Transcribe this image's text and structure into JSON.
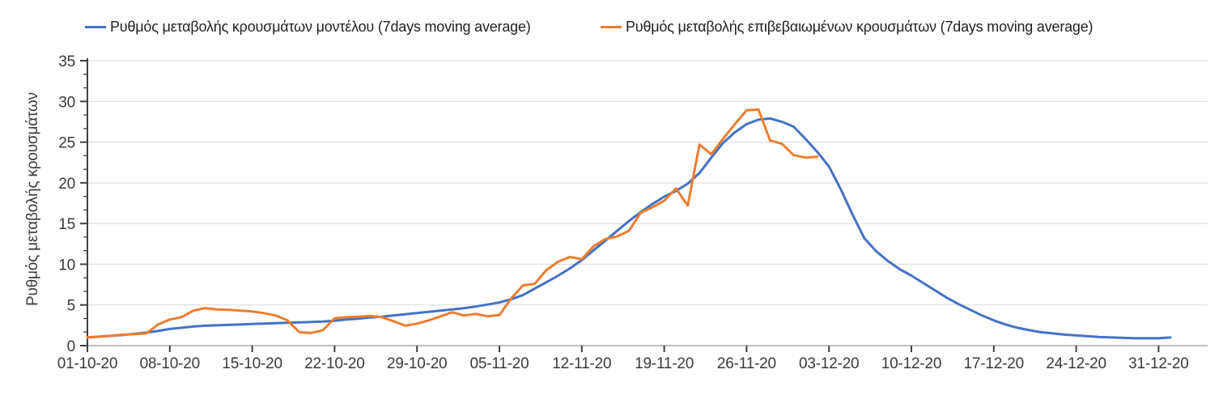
{
  "legend": {
    "items": [
      {
        "label": "Ρυθμός μεταβολής κρουσμάτων μοντέλου (7days moving average)",
        "color": "#4472C4"
      },
      {
        "label": "Ρυθμός μεταβολής επιβεβαιωμένων κρουσμάτων (7days moving average)",
        "color": "#ED7D31"
      }
    ]
  },
  "chart_data": {
    "type": "line",
    "title": "",
    "xlabel": "",
    "ylabel": "Ρυθμός μεταβολής κρουσμάτων",
    "ylim": [
      0,
      35
    ],
    "y_ticks": [
      0,
      5,
      10,
      15,
      20,
      25,
      30,
      35
    ],
    "grid": "horizontal",
    "legend_position": "top",
    "x_start_date": "01-10-20",
    "x_frequency": "daily",
    "x_ticks": [
      {
        "day": 0,
        "label": "01-10-20"
      },
      {
        "day": 7,
        "label": "08-10-20"
      },
      {
        "day": 14,
        "label": "15-10-20"
      },
      {
        "day": 21,
        "label": "22-10-20"
      },
      {
        "day": 28,
        "label": "29-10-20"
      },
      {
        "day": 35,
        "label": "05-11-20"
      },
      {
        "day": 42,
        "label": "12-11-20"
      },
      {
        "day": 49,
        "label": "19-11-20"
      },
      {
        "day": 56,
        "label": "26-11-20"
      },
      {
        "day": 63,
        "label": "03-12-20"
      },
      {
        "day": 70,
        "label": "10-12-20"
      },
      {
        "day": 77,
        "label": "17-12-20"
      },
      {
        "day": 84,
        "label": "24-12-20"
      },
      {
        "day": 91,
        "label": "31-12-20"
      }
    ],
    "colors": {
      "gridline": "#D9D9D9",
      "axis_line": "#BFBFBF",
      "tick": "#404040",
      "text": "#3A3A3A"
    },
    "series": [
      {
        "id": "model",
        "name": "Ρυθμός μεταβολής κρουσμάτων μοντέλου (7days moving average)",
        "color": "#4472C4",
        "start_day": 0,
        "values": [
          1.0,
          1.1,
          1.2,
          1.3,
          1.45,
          1.6,
          1.8,
          2.05,
          2.2,
          2.35,
          2.45,
          2.5,
          2.55,
          2.6,
          2.65,
          2.7,
          2.75,
          2.8,
          2.85,
          2.9,
          2.95,
          3.05,
          3.2,
          3.3,
          3.45,
          3.55,
          3.7,
          3.85,
          4.0,
          4.15,
          4.3,
          4.45,
          4.6,
          4.8,
          5.05,
          5.3,
          5.7,
          6.2,
          7.0,
          7.8,
          8.6,
          9.5,
          10.5,
          11.7,
          12.9,
          14.1,
          15.3,
          16.4,
          17.4,
          18.3,
          19.0,
          19.9,
          21.2,
          23.1,
          24.9,
          26.2,
          27.2,
          27.75,
          27.9,
          27.5,
          26.9,
          25.4,
          23.8,
          22.0,
          19.2,
          16.1,
          13.2,
          11.6,
          10.4,
          9.4,
          8.6,
          7.7,
          6.8,
          5.9,
          5.1,
          4.4,
          3.7,
          3.1,
          2.6,
          2.2,
          1.9,
          1.65,
          1.5,
          1.35,
          1.25,
          1.15,
          1.05,
          1.0,
          0.95,
          0.9,
          0.9,
          0.9,
          1.0
        ]
      },
      {
        "id": "confirmed",
        "name": "Ρυθμός μεταβολής επιβεβαιωμένων κρουσμάτων (7days moving average)",
        "color": "#ED7D31",
        "start_day": 0,
        "values": [
          1.0,
          1.1,
          1.2,
          1.35,
          1.4,
          1.5,
          2.6,
          3.2,
          3.5,
          4.3,
          4.6,
          4.45,
          4.4,
          4.3,
          4.2,
          4.0,
          3.7,
          3.1,
          1.65,
          1.55,
          1.9,
          3.35,
          3.5,
          3.55,
          3.65,
          3.5,
          3.0,
          2.45,
          2.7,
          3.1,
          3.6,
          4.1,
          3.7,
          3.9,
          3.6,
          3.75,
          5.8,
          7.4,
          7.6,
          9.3,
          10.3,
          10.9,
          10.6,
          12.2,
          13.1,
          13.4,
          14.1,
          16.3,
          17.0,
          17.8,
          19.3,
          17.2,
          24.7,
          23.5,
          25.4,
          27.2,
          28.9,
          29.0,
          25.2,
          24.8,
          23.4,
          23.1,
          23.2
        ]
      }
    ]
  }
}
